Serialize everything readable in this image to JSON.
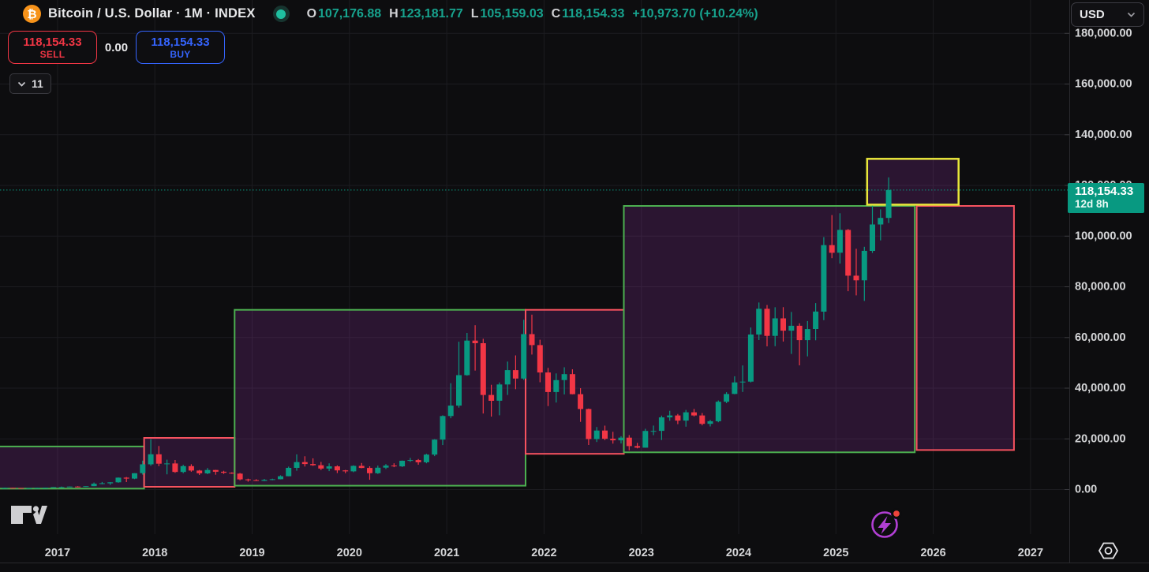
{
  "header": {
    "symbol": {
      "icon": "bitcoin-logo",
      "title": "Bitcoin / U.S. Dollar · 1M · INDEX",
      "status_indicator": "market-status-dot"
    },
    "ohlc": {
      "open_label": "O",
      "open": "107,176.88",
      "high_label": "H",
      "high": "123,181.77",
      "low_label": "L",
      "low": "105,159.03",
      "close_label": "C",
      "close": "118,154.33",
      "change": "+10,973.70 (+10.24%)"
    },
    "trade": {
      "sell_price": "118,154.33",
      "sell_label": "SELL",
      "spread": "0.00",
      "buy_price": "118,154.33",
      "buy_label": "BUY"
    },
    "indicators_chip": {
      "icon": "chevron-down-icon",
      "count": "11"
    }
  },
  "price_axis": {
    "currency_button": {
      "label": "USD",
      "icon": "chevron-down-icon"
    },
    "labels": [
      {
        "value": 180000,
        "label": "180,000.00"
      },
      {
        "value": 160000,
        "label": "160,000.00"
      },
      {
        "value": 140000,
        "label": "140,000.00"
      },
      {
        "value": 120000,
        "label": "120,000.00"
      },
      {
        "value": 100000,
        "label": "100,000.00"
      },
      {
        "value": 80000,
        "label": "80,000.00"
      },
      {
        "value": 60000,
        "label": "60,000.00"
      },
      {
        "value": 40000,
        "label": "40,000.00"
      },
      {
        "value": 20000,
        "label": "20,000.00"
      },
      {
        "value": 0,
        "label": "0.00"
      }
    ],
    "current_price_tag": {
      "price": "118,154.33",
      "countdown": "12d 8h"
    }
  },
  "time_axis": {
    "years": [
      "2017",
      "2018",
      "2019",
      "2020",
      "2021",
      "2022",
      "2023",
      "2024",
      "2025",
      "2026",
      "2027"
    ]
  },
  "chart_data": {
    "type": "candlestick",
    "symbol": "Bitcoin / U.S. Dollar INDEX",
    "timeframe": "1M",
    "price_range_visible": [
      0,
      188000
    ],
    "time_range_visible": [
      "2016-06",
      "2027-05"
    ],
    "current_price": 118154.33,
    "grid": true,
    "candles_format": [
      "year",
      "month",
      "open",
      "high",
      "low",
      "close"
    ],
    "candles": [
      [
        2016,
        6,
        530,
        780,
        510,
        670
      ],
      [
        2016,
        7,
        670,
        705,
        610,
        625
      ],
      [
        2016,
        8,
        625,
        640,
        540,
        575
      ],
      [
        2016,
        9,
        575,
        630,
        565,
        610
      ],
      [
        2016,
        10,
        610,
        720,
        600,
        700
      ],
      [
        2016,
        11,
        700,
        755,
        670,
        745
      ],
      [
        2016,
        12,
        745,
        980,
        740,
        963
      ],
      [
        2017,
        1,
        963,
        1180,
        750,
        970
      ],
      [
        2017,
        2,
        970,
        1220,
        920,
        1180
      ],
      [
        2017,
        3,
        1180,
        1330,
        890,
        1080
      ],
      [
        2017,
        4,
        1080,
        1350,
        1060,
        1350
      ],
      [
        2017,
        5,
        1350,
        2760,
        1340,
        2300
      ],
      [
        2017,
        6,
        2300,
        2990,
        2100,
        2480
      ],
      [
        2017,
        7,
        2480,
        2920,
        1830,
        2875
      ],
      [
        2017,
        8,
        2875,
        4760,
        2670,
        4700
      ],
      [
        2017,
        9,
        4700,
        4940,
        2970,
        4340
      ],
      [
        2017,
        10,
        4340,
        6470,
        4110,
        6450
      ],
      [
        2017,
        11,
        6450,
        11400,
        5880,
        9950
      ],
      [
        2017,
        12,
        9950,
        19870,
        9380,
        13900
      ],
      [
        2018,
        1,
        13900,
        17180,
        9220,
        10200
      ],
      [
        2018,
        2,
        10200,
        11790,
        6000,
        10300
      ],
      [
        2018,
        3,
        10300,
        11660,
        6600,
        6930
      ],
      [
        2018,
        4,
        6930,
        9760,
        6430,
        9240
      ],
      [
        2018,
        5,
        9240,
        9990,
        7040,
        7490
      ],
      [
        2018,
        6,
        7490,
        7750,
        5770,
        6400
      ],
      [
        2018,
        7,
        6400,
        8500,
        6070,
        7730
      ],
      [
        2018,
        8,
        7730,
        7770,
        5860,
        7030
      ],
      [
        2018,
        9,
        7030,
        7410,
        6160,
        6630
      ],
      [
        2018,
        10,
        6630,
        6810,
        6200,
        6300
      ],
      [
        2018,
        11,
        6300,
        6540,
        3650,
        4020
      ],
      [
        2018,
        12,
        4020,
        4300,
        3120,
        3690
      ],
      [
        2019,
        1,
        3690,
        4090,
        3350,
        3430
      ],
      [
        2019,
        2,
        3430,
        4200,
        3330,
        3810
      ],
      [
        2019,
        3,
        3810,
        4290,
        3660,
        4090
      ],
      [
        2019,
        4,
        4090,
        5620,
        4030,
        5270
      ],
      [
        2019,
        5,
        5270,
        9070,
        5220,
        8560
      ],
      [
        2019,
        6,
        8560,
        13880,
        7450,
        10820
      ],
      [
        2019,
        7,
        10820,
        13130,
        9080,
        10080
      ],
      [
        2019,
        8,
        10080,
        12320,
        9350,
        9590
      ],
      [
        2019,
        9,
        9590,
        10900,
        7700,
        8290
      ],
      [
        2019,
        10,
        8290,
        10350,
        7290,
        9150
      ],
      [
        2019,
        11,
        9150,
        9520,
        6520,
        7550
      ],
      [
        2019,
        12,
        7550,
        7750,
        6430,
        7190
      ],
      [
        2020,
        1,
        7190,
        9570,
        6850,
        9350
      ],
      [
        2020,
        2,
        9350,
        10500,
        8400,
        8530
      ],
      [
        2020,
        3,
        8530,
        9170,
        3850,
        6440
      ],
      [
        2020,
        4,
        6440,
        9460,
        6150,
        8630
      ],
      [
        2020,
        5,
        8630,
        10070,
        8100,
        9450
      ],
      [
        2020,
        6,
        9450,
        10380,
        8830,
        9140
      ],
      [
        2020,
        7,
        9140,
        11450,
        8900,
        11350
      ],
      [
        2020,
        8,
        11350,
        12480,
        10940,
        11650
      ],
      [
        2020,
        9,
        11650,
        12050,
        9820,
        10780
      ],
      [
        2020,
        10,
        10780,
        14100,
        10380,
        13800
      ],
      [
        2020,
        11,
        13800,
        19860,
        13200,
        19700
      ],
      [
        2020,
        12,
        19700,
        29300,
        17570,
        29000
      ],
      [
        2021,
        1,
        29000,
        41950,
        28130,
        33110
      ],
      [
        2021,
        2,
        33110,
        58350,
        32320,
        45140
      ],
      [
        2021,
        3,
        45140,
        61780,
        44950,
        58780
      ],
      [
        2021,
        4,
        58780,
        64850,
        46930,
        57750
      ],
      [
        2021,
        5,
        57750,
        59500,
        30000,
        37330
      ],
      [
        2021,
        6,
        37330,
        41330,
        28800,
        35040
      ],
      [
        2021,
        7,
        35040,
        42230,
        29300,
        41460
      ],
      [
        2021,
        8,
        41460,
        50500,
        37330,
        47130
      ],
      [
        2021,
        9,
        47130,
        52920,
        39600,
        43790
      ],
      [
        2021,
        10,
        43790,
        66999,
        43280,
        61320
      ],
      [
        2021,
        11,
        61320,
        69000,
        53250,
        57000
      ],
      [
        2021,
        12,
        57000,
        59100,
        42330,
        46210
      ],
      [
        2022,
        1,
        46210,
        47990,
        32930,
        38480
      ],
      [
        2022,
        2,
        38480,
        45820,
        34320,
        43190
      ],
      [
        2022,
        3,
        43190,
        48240,
        37550,
        45540
      ],
      [
        2022,
        4,
        45540,
        47450,
        37580,
        37640
      ],
      [
        2022,
        5,
        37640,
        40000,
        26700,
        31790
      ],
      [
        2022,
        6,
        31790,
        31980,
        17600,
        19940
      ],
      [
        2022,
        7,
        19940,
        24670,
        18780,
        23290
      ],
      [
        2022,
        8,
        23290,
        25210,
        19520,
        20050
      ],
      [
        2022,
        9,
        20050,
        22800,
        18130,
        19430
      ],
      [
        2022,
        10,
        19430,
        21080,
        18190,
        20490
      ],
      [
        2022,
        11,
        20490,
        21480,
        15480,
        17160
      ],
      [
        2022,
        12,
        17160,
        18390,
        16260,
        16540
      ],
      [
        2023,
        1,
        16540,
        23960,
        16490,
        23130
      ],
      [
        2023,
        2,
        23130,
        25250,
        21440,
        23140
      ],
      [
        2023,
        3,
        23140,
        29180,
        19550,
        28470
      ],
      [
        2023,
        4,
        28470,
        31060,
        27150,
        29230
      ],
      [
        2023,
        5,
        29230,
        29830,
        25810,
        27210
      ],
      [
        2023,
        6,
        27210,
        31400,
        24800,
        30470
      ],
      [
        2023,
        7,
        30470,
        31800,
        28860,
        29230
      ],
      [
        2023,
        8,
        29230,
        30180,
        25350,
        25930
      ],
      [
        2023,
        9,
        25930,
        27480,
        24900,
        26970
      ],
      [
        2023,
        10,
        26970,
        35150,
        26540,
        34650
      ],
      [
        2023,
        11,
        34650,
        38410,
        34100,
        37710
      ],
      [
        2023,
        12,
        37710,
        44700,
        37610,
        42270
      ],
      [
        2024,
        1,
        42270,
        48970,
        38500,
        42580
      ],
      [
        2024,
        2,
        42580,
        63930,
        42270,
        61170
      ],
      [
        2024,
        3,
        61170,
        73800,
        59000,
        71330
      ],
      [
        2024,
        4,
        71330,
        72800,
        56500,
        60640
      ],
      [
        2024,
        5,
        60640,
        71950,
        56550,
        67540
      ],
      [
        2024,
        6,
        67540,
        71980,
        58400,
        62680
      ],
      [
        2024,
        7,
        62680,
        70080,
        53500,
        64620
      ],
      [
        2024,
        8,
        64620,
        65600,
        49000,
        58970
      ],
      [
        2024,
        9,
        58970,
        66500,
        52550,
        63330
      ],
      [
        2024,
        10,
        63330,
        73600,
        58900,
        70220
      ],
      [
        2024,
        11,
        70220,
        99600,
        66830,
        96450
      ],
      [
        2024,
        12,
        96450,
        108300,
        91300,
        93430
      ],
      [
        2025,
        1,
        93430,
        109000,
        89160,
        102430
      ],
      [
        2025,
        2,
        102430,
        102800,
        78260,
        84380
      ],
      [
        2025,
        3,
        84380,
        95000,
        76600,
        82550
      ],
      [
        2025,
        4,
        82550,
        95770,
        74430,
        94180
      ],
      [
        2025,
        5,
        94180,
        112000,
        93350,
        104600
      ],
      [
        2025,
        6,
        104600,
        110530,
        98300,
        107170
      ],
      [
        2025,
        7,
        107176.88,
        123181.77,
        105159.03,
        118154.33
      ]
    ],
    "boxes": [
      {
        "name": "long-box-2016-2017",
        "border": "green",
        "t1": 2016.3,
        "t2": 2017.89,
        "price_top": 17000,
        "price_bottom": 380
      },
      {
        "name": "short-box-2018",
        "border": "red",
        "t1": 2017.89,
        "t2": 2018.82,
        "price_top": 20400,
        "price_bottom": 1100
      },
      {
        "name": "long-box-2019-2021",
        "border": "green",
        "t1": 2018.82,
        "t2": 2021.81,
        "price_top": 70900,
        "price_bottom": 1500
      },
      {
        "name": "short-box-2022",
        "border": "red",
        "t1": 2021.81,
        "t2": 2022.82,
        "price_top": 70900,
        "price_bottom": 14100
      },
      {
        "name": "long-box-2023-2025",
        "border": "green",
        "t1": 2022.82,
        "t2": 2025.81,
        "price_top": 111900,
        "price_bottom": 14700
      },
      {
        "name": "short-box-2026",
        "border": "red",
        "t1": 2025.83,
        "t2": 2026.83,
        "price_top": 111900,
        "price_bottom": 15600
      },
      {
        "name": "target-box-yellow",
        "border": "yellow",
        "t1": 2025.32,
        "t2": 2026.26,
        "price_top": 130500,
        "price_bottom": 112400
      }
    ]
  },
  "colors": {
    "background": "#0d0d0f",
    "grid": "#1c1c20",
    "up": "#089981",
    "down": "#f23645",
    "accent": "#089981",
    "buy_blue": "#3564fd",
    "sell_red": "#f23645",
    "box_green": "#4caf50",
    "box_red": "#f7525f",
    "box_yellow": "#e9e73b",
    "box_fill": "rgba(142,52,160,0.24)",
    "axis_text": "#d5d6d8",
    "separator": "#2a2a2e",
    "tick": "#3a3a3f",
    "bitcoin_orange": "#f7931a",
    "lightning_purple": "#b13fd4",
    "notification_red": "#f0443c"
  },
  "branding": {
    "logo": "tradingview-logo"
  }
}
